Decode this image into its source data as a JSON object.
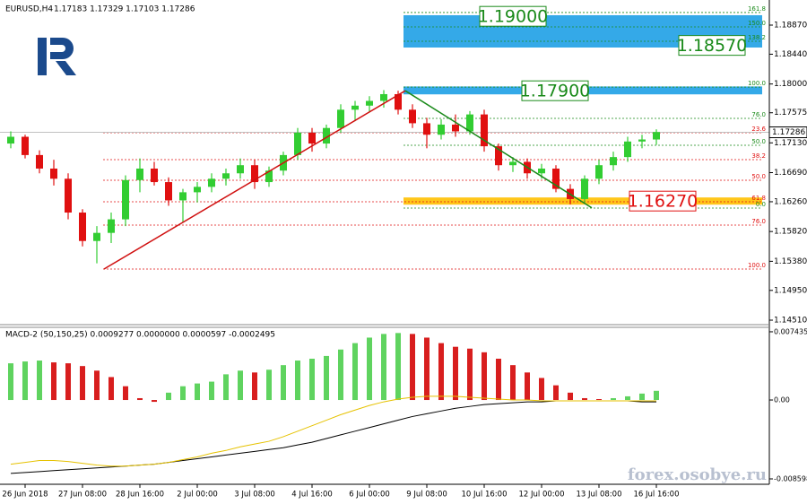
{
  "chart_data": [
    {
      "type": "candlestick",
      "symbol": "EURUSD,H4",
      "ohlc_text": "1.17183 1.17329 1.17103 1.17286",
      "up_color": "#32cd32",
      "down_color": "#e01010",
      "categories": [
        null,
        "26 Jun 2018",
        null,
        null,
        null,
        "27 Jun 08:00",
        null,
        null,
        null,
        "28 Jun 16:00",
        null,
        null,
        null,
        "2 Jul 00:00",
        null,
        null,
        null,
        "3 Jul 08:00",
        null,
        null,
        null,
        "4 Jul 16:00",
        null,
        null,
        null,
        "6 Jul 00:00",
        null,
        null,
        null,
        "9 Jul 08:00",
        null,
        null,
        null,
        "10 Jul 16:00",
        null,
        null,
        null,
        "12 Jul 00:00",
        null,
        null,
        null,
        "13 Jul 08:00",
        null,
        null,
        null,
        "16 Jul 16:00"
      ],
      "open": [
        1.1712,
        1.1722,
        1.1695,
        1.1675,
        1.166,
        1.161,
        1.1568,
        1.158,
        1.16,
        1.1658,
        1.1675,
        1.1655,
        1.1628,
        1.164,
        1.1648,
        1.166,
        1.1668,
        1.168,
        1.1655,
        1.1672,
        1.1695,
        1.1728,
        1.1712,
        1.1735,
        1.1762,
        1.1768,
        1.1775,
        1.1785,
        1.1762,
        1.1742,
        1.1725,
        1.174,
        1.173,
        1.1755,
        1.1708,
        1.168,
        1.1685,
        1.1668,
        1.1675,
        1.1645,
        1.163,
        1.166,
        1.168,
        1.1692,
        1.1715,
        1.1718
      ],
      "high": [
        1.173,
        1.1725,
        1.1702,
        1.1688,
        1.1668,
        1.1615,
        1.159,
        1.161,
        1.1665,
        1.169,
        1.1685,
        1.1662,
        1.1645,
        1.1655,
        1.1668,
        1.1675,
        1.169,
        1.1688,
        1.1678,
        1.17,
        1.1735,
        1.1735,
        1.174,
        1.177,
        1.1775,
        1.1782,
        1.1791,
        1.179,
        1.177,
        1.175,
        1.1748,
        1.1755,
        1.176,
        1.1762,
        1.1712,
        1.1692,
        1.169,
        1.1682,
        1.168,
        1.1652,
        1.1665,
        1.1688,
        1.17,
        1.1722,
        1.1725,
        1.1733
      ],
      "low": [
        1.1705,
        1.169,
        1.1668,
        1.165,
        1.16,
        1.156,
        1.1535,
        1.1565,
        1.159,
        1.164,
        1.165,
        1.162,
        1.1595,
        1.1625,
        1.164,
        1.165,
        1.166,
        1.1645,
        1.1648,
        1.1665,
        1.1688,
        1.17,
        1.1705,
        1.1728,
        1.1745,
        1.1758,
        1.1765,
        1.1755,
        1.1735,
        1.1705,
        1.1718,
        1.1722,
        1.1725,
        1.17,
        1.1672,
        1.167,
        1.166,
        1.166,
        1.164,
        1.1622,
        1.1625,
        1.1652,
        1.1672,
        1.1685,
        1.1705,
        1.171
      ],
      "close": [
        1.1722,
        1.1695,
        1.1675,
        1.166,
        1.161,
        1.1568,
        1.158,
        1.16,
        1.1658,
        1.1675,
        1.1655,
        1.1628,
        1.164,
        1.1648,
        1.166,
        1.1668,
        1.168,
        1.1655,
        1.1672,
        1.1695,
        1.1728,
        1.1712,
        1.1735,
        1.1762,
        1.1768,
        1.1775,
        1.1785,
        1.1762,
        1.1742,
        1.1725,
        1.174,
        1.173,
        1.1755,
        1.1708,
        1.168,
        1.1685,
        1.1668,
        1.1675,
        1.1645,
        1.163,
        1.166,
        1.168,
        1.1692,
        1.1715,
        1.1718,
        1.1729
      ],
      "ylim": [
        1.14444,
        1.19241
      ],
      "yticks": [
        {
          "value": 1.1887,
          "label": "1.18870"
        },
        {
          "value": 1.1844,
          "label": "1.18440"
        },
        {
          "value": 1.18,
          "label": "1.18000"
        },
        {
          "value": 1.17575,
          "label": "1.17575"
        },
        {
          "value": 1.1713,
          "label": "1.17130"
        },
        {
          "value": 1.1669,
          "label": "1.16690"
        },
        {
          "value": 1.1626,
          "label": "1.16260"
        },
        {
          "value": 1.1582,
          "label": "1.15820"
        },
        {
          "value": 1.1538,
          "label": "1.15380"
        },
        {
          "value": 1.1495,
          "label": "1.14950"
        },
        {
          "value": 1.1451,
          "label": "1.14510"
        }
      ],
      "current_price": {
        "value": 1.17286,
        "label": "1.17286"
      },
      "zones": [
        {
          "from": 1.19003,
          "to": 1.18552,
          "color": "#1ea0e6"
        },
        {
          "from": 1.1795,
          "to": 1.1786,
          "color": "#1ea0e6"
        },
        {
          "from": 1.1631,
          "to": 1.1623,
          "color": "#ffc000"
        }
      ],
      "price_boxes": [
        {
          "value": 1.19,
          "label": "1.19000",
          "color": "#1a8a1a"
        },
        {
          "value": 1.1857,
          "label": "1.18570",
          "color": "#1a8a1a"
        },
        {
          "value": 1.179,
          "label": "1.17900",
          "color": "#1a8a1a"
        },
        {
          "value": 1.1627,
          "label": "1.16270",
          "color": "#e01010"
        }
      ],
      "fib_groups": [
        {
          "color": "#e01010",
          "levels": [
            {
              "value": 1.1728,
              "label": "23.6"
            },
            {
              "value": 1.16882,
              "label": "38.2"
            },
            {
              "value": 1.16577,
              "label": "50.0"
            },
            {
              "value": 1.16259,
              "label": "61.8"
            },
            {
              "value": 1.15915,
              "label": "76.0"
            },
            {
              "value": 1.15266,
              "label": "100.0"
            }
          ]
        },
        {
          "color": "#1a8a1a",
          "levels": [
            {
              "value": 1.19056,
              "label": "161.8"
            },
            {
              "value": 1.18843,
              "label": "150.0"
            },
            {
              "value": 1.18631,
              "label": "138.2"
            },
            {
              "value": 1.17955,
              "label": "100.0"
            },
            {
              "value": 1.17492,
              "label": "76.0"
            },
            {
              "value": 1.17094,
              "label": "50.0"
            },
            {
              "value": 1.16167,
              "label": "0.0"
            }
          ]
        }
      ],
      "trendlines": [
        {
          "from": 1.15266,
          "to": 1.179,
          "color": "#d01010"
        },
        {
          "from": 1.179,
          "to": 1.1617,
          "color": "#1a8a1a"
        }
      ],
      "watermark": "forex.osobye.ru"
    },
    {
      "type": "macd",
      "title": "MACD-2 (50,150,25) 0.0009277 0.0000000 0.0000597 -0.0002495",
      "up_color": "#5fd35f",
      "down_color": "#d81e1e",
      "values": [
        0.004,
        0.0042,
        0.0043,
        0.0041,
        0.004,
        0.0037,
        0.0032,
        0.0025,
        0.0015,
        0.0002,
        -0.0002,
        0.0008,
        0.0015,
        0.0018,
        0.002,
        0.0028,
        0.0032,
        0.003,
        0.0033,
        0.0038,
        0.0043,
        0.0045,
        0.0048,
        0.0055,
        0.0062,
        0.0068,
        0.0072,
        0.0073,
        0.0072,
        0.0068,
        0.0062,
        0.0058,
        0.0056,
        0.0052,
        0.0045,
        0.0038,
        0.003,
        0.0024,
        0.0016,
        0.0008,
        0.0002,
        0.0001,
        0.0002,
        0.0004,
        0.0007,
        0.001
      ],
      "series": [
        {
          "color": "#000000",
          "values": [
            -0.008,
            -0.0079,
            -0.0078,
            -0.0077,
            -0.0076,
            -0.0075,
            -0.0074,
            -0.0073,
            -0.0072,
            -0.0071,
            -0.007,
            -0.0068,
            -0.0066,
            -0.0064,
            -0.0062,
            -0.006,
            -0.0058,
            -0.0056,
            -0.0054,
            -0.0052,
            -0.0049,
            -0.0046,
            -0.0042,
            -0.0038,
            -0.0034,
            -0.003,
            -0.0026,
            -0.0022,
            -0.0018,
            -0.0015,
            -0.0012,
            -0.0009,
            -0.0007,
            -0.0005,
            -0.0004,
            -0.0003,
            -0.0002,
            -0.0002,
            -0.0001,
            -0.0001,
            -0.0001,
            -0.0001,
            -0.0001,
            -0.0001,
            -0.0002,
            -0.0002
          ]
        },
        {
          "color": "#e6c200",
          "values": [
            -0.007,
            -0.0068,
            -0.0066,
            -0.0066,
            -0.0067,
            -0.0069,
            -0.0071,
            -0.0072,
            -0.0072,
            -0.0071,
            -0.007,
            -0.0068,
            -0.0065,
            -0.0062,
            -0.0058,
            -0.0055,
            -0.0051,
            -0.0048,
            -0.0045,
            -0.004,
            -0.0034,
            -0.0028,
            -0.0022,
            -0.0016,
            -0.0011,
            -0.0006,
            -0.0002,
            0.0001,
            0.0003,
            0.0004,
            0.0004,
            0.0004,
            0.0003,
            0.0002,
            0.0001,
            0,
            0,
            -0.0001,
            -0.0001,
            -0.0001,
            -0.0001,
            -0.0001,
            -0.0001,
            -0.0001,
            -0.0001,
            -0.0001
          ]
        }
      ],
      "ylim": [
        -0.009185,
        0.00792
      ],
      "yticks": [
        0.007435,
        {
          "value": 0,
          "label": "0.00"
        },
        -0.008598
      ]
    }
  ]
}
